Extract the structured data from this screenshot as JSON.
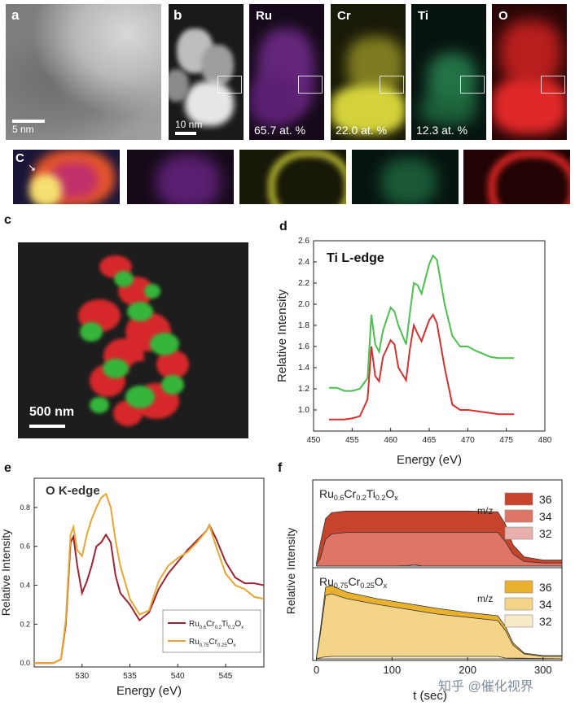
{
  "panel_a": {
    "label": "a",
    "scale": "5 nm"
  },
  "panel_b": {
    "label": "b",
    "scale": "10 nm",
    "maps": [
      {
        "element": "Ru",
        "percent": "65.7 at. %",
        "color": "#7b2b8f"
      },
      {
        "element": "Cr",
        "percent": "22.0 at. %",
        "color": "#c8c838"
      },
      {
        "element": "Ti",
        "percent": "12.3 at. %",
        "color": "#2a8a55"
      },
      {
        "element": "O",
        "percent": "",
        "color": "#d42424"
      }
    ]
  },
  "panel_c_strip": {
    "label": "C"
  },
  "panel_c": {
    "label": "c",
    "scale": "500 nm"
  },
  "chart_data": [
    {
      "panel": "d",
      "type": "line",
      "title": "Ti L-edge",
      "xlabel": "Energy (eV)",
      "ylabel": "Relative Intensity",
      "xlim": [
        450,
        480
      ],
      "ylim": [
        0.8,
        2.6
      ],
      "xticks": [
        "450",
        "455",
        "460",
        "465",
        "470",
        "475",
        "480"
      ],
      "yticks": [
        "1.0",
        "1.2",
        "1.4",
        "1.6",
        "1.8",
        "2.0",
        "2.2",
        "2.4",
        "2.6"
      ],
      "series": [
        {
          "name": "green",
          "color": "#4cc04c",
          "points": [
            [
              452,
              1.21
            ],
            [
              453,
              1.21
            ],
            [
              454,
              1.18
            ],
            [
              455,
              1.18
            ],
            [
              456,
              1.2
            ],
            [
              457,
              1.3
            ],
            [
              457.5,
              1.9
            ],
            [
              458,
              1.62
            ],
            [
              458.5,
              1.55
            ],
            [
              459,
              1.75
            ],
            [
              460,
              1.97
            ],
            [
              460.5,
              1.93
            ],
            [
              461,
              1.8
            ],
            [
              462,
              1.62
            ],
            [
              462.5,
              1.92
            ],
            [
              463,
              2.2
            ],
            [
              463.5,
              2.18
            ],
            [
              464,
              2.1
            ],
            [
              465,
              2.38
            ],
            [
              465.5,
              2.46
            ],
            [
              466,
              2.42
            ],
            [
              467,
              2.0
            ],
            [
              468,
              1.7
            ],
            [
              469,
              1.6
            ],
            [
              470,
              1.6
            ],
            [
              471,
              1.56
            ],
            [
              472,
              1.53
            ],
            [
              473,
              1.5
            ],
            [
              474,
              1.49
            ],
            [
              475,
              1.49
            ],
            [
              476,
              1.49
            ]
          ]
        },
        {
          "name": "red",
          "color": "#d63030",
          "points": [
            [
              452,
              0.91
            ],
            [
              453,
              0.91
            ],
            [
              454,
              0.91
            ],
            [
              455,
              0.92
            ],
            [
              456,
              0.94
            ],
            [
              457,
              1.1
            ],
            [
              457.5,
              1.6
            ],
            [
              458,
              1.32
            ],
            [
              458.5,
              1.27
            ],
            [
              459,
              1.5
            ],
            [
              460,
              1.66
            ],
            [
              460.5,
              1.62
            ],
            [
              461,
              1.4
            ],
            [
              462,
              1.28
            ],
            [
              462.5,
              1.58
            ],
            [
              463,
              1.8
            ],
            [
              463.5,
              1.72
            ],
            [
              464,
              1.65
            ],
            [
              465,
              1.85
            ],
            [
              465.5,
              1.9
            ],
            [
              466,
              1.82
            ],
            [
              467,
              1.4
            ],
            [
              468,
              1.05
            ],
            [
              469,
              1.0
            ],
            [
              470,
              1.0
            ],
            [
              471,
              0.99
            ],
            [
              472,
              0.98
            ],
            [
              473,
              0.97
            ],
            [
              474,
              0.96
            ],
            [
              475,
              0.96
            ],
            [
              476,
              0.96
            ]
          ]
        }
      ]
    },
    {
      "panel": "e",
      "type": "line",
      "title": "O K-edge",
      "xlabel": "Energy (eV)",
      "ylabel": "Relative Intensity",
      "xlim": [
        525,
        549
      ],
      "ylim": [
        -0.02,
        0.95
      ],
      "xticks": [
        "530",
        "535",
        "540",
        "545"
      ],
      "yticks": [
        "0.0",
        "0.2",
        "0.4",
        "0.6",
        "0.8"
      ],
      "legend": [
        {
          "base": "Ru",
          "sub1": "0.6",
          "mid1": "Cr",
          "sub2": "0.2",
          "mid2": "Ti",
          "sub3": "0.2",
          "mid3": "O",
          "sub4": "x",
          "color": "#9e2230"
        },
        {
          "base": "Ru",
          "sub1": "0.75",
          "mid1": "Cr",
          "sub2": "0.25",
          "mid2": "O",
          "sub3": "x",
          "color": "#e8a630"
        }
      ],
      "series": [
        {
          "name": "Ru0.6Cr0.2Ti0.2Ox",
          "color": "#9e2230",
          "points": [
            [
              525,
              0
            ],
            [
              527,
              0
            ],
            [
              527.8,
              0.02
            ],
            [
              528.3,
              0.2
            ],
            [
              528.8,
              0.62
            ],
            [
              529.1,
              0.65
            ],
            [
              529.5,
              0.5
            ],
            [
              530,
              0.36
            ],
            [
              530.5,
              0.42
            ],
            [
              531,
              0.5
            ],
            [
              531.5,
              0.6
            ],
            [
              532,
              0.62
            ],
            [
              532.5,
              0.66
            ],
            [
              533,
              0.62
            ],
            [
              533.5,
              0.45
            ],
            [
              534,
              0.36
            ],
            [
              535,
              0.3
            ],
            [
              536,
              0.22
            ],
            [
              537,
              0.26
            ],
            [
              538,
              0.38
            ],
            [
              539,
              0.46
            ],
            [
              540,
              0.52
            ],
            [
              541,
              0.58
            ],
            [
              542,
              0.63
            ],
            [
              543,
              0.68
            ],
            [
              543.3,
              0.71
            ],
            [
              544,
              0.64
            ],
            [
              545,
              0.52
            ],
            [
              546,
              0.44
            ],
            [
              547,
              0.41
            ],
            [
              548,
              0.41
            ],
            [
              549,
              0.4
            ]
          ]
        },
        {
          "name": "Ru0.75Cr0.25Ox",
          "color": "#e8a630",
          "points": [
            [
              525,
              0
            ],
            [
              527,
              0
            ],
            [
              527.8,
              0.02
            ],
            [
              528.3,
              0.22
            ],
            [
              528.8,
              0.66
            ],
            [
              529.1,
              0.7
            ],
            [
              529.5,
              0.58
            ],
            [
              530,
              0.55
            ],
            [
              530.5,
              0.66
            ],
            [
              531,
              0.74
            ],
            [
              531.5,
              0.8
            ],
            [
              532,
              0.85
            ],
            [
              532.5,
              0.87
            ],
            [
              533,
              0.8
            ],
            [
              533.5,
              0.63
            ],
            [
              534,
              0.5
            ],
            [
              535,
              0.33
            ],
            [
              536,
              0.25
            ],
            [
              537,
              0.27
            ],
            [
              538,
              0.42
            ],
            [
              539,
              0.5
            ],
            [
              540,
              0.54
            ],
            [
              541,
              0.57
            ],
            [
              542,
              0.62
            ],
            [
              543,
              0.68
            ],
            [
              543.3,
              0.71
            ],
            [
              544,
              0.6
            ],
            [
              545,
              0.46
            ],
            [
              546,
              0.4
            ],
            [
              547,
              0.38
            ],
            [
              548,
              0.34
            ],
            [
              549,
              0.33
            ]
          ]
        }
      ]
    },
    {
      "panel": "f",
      "type": "area",
      "xlabel": "t (sec)",
      "ylabel": "Relative Intensity",
      "xlim": [
        -5,
        325
      ],
      "xticks": [
        "0",
        "100",
        "200",
        "300"
      ],
      "subplots": [
        {
          "title": {
            "base": "Ru",
            "s1": "0.6",
            "m1": "Cr",
            "s2": "0.2",
            "m2": "Ti",
            "s3": "0.2",
            "m3": "O",
            "s4": "x"
          },
          "legend_title": "m/z",
          "legend": [
            {
              "label": "36",
              "color": "#c8432c"
            },
            {
              "label": "34",
              "color": "#de7566"
            },
            {
              "label": "32",
              "color": "#e8b0ab"
            }
          ],
          "ylim": [
            0,
            1
          ],
          "series": [
            {
              "name": "36",
              "color": "#c8432c",
              "points": [
                [
                  0,
                  0.05
                ],
                [
                  5,
                  0.3
                ],
                [
                  12,
                  0.62
                ],
                [
                  20,
                  0.7
                ],
                [
                  40,
                  0.72
                ],
                [
                  80,
                  0.72
                ],
                [
                  120,
                  0.72
                ],
                [
                  160,
                  0.72
                ],
                [
                  200,
                  0.72
                ],
                [
                  240,
                  0.71
                ],
                [
                  250,
                  0.55
                ],
                [
                  260,
                  0.28
                ],
                [
                  275,
                  0.12
                ],
                [
                  300,
                  0.08
                ],
                [
                  325,
                  0.08
                ]
              ]
            },
            {
              "name": "34",
              "color": "#de7566",
              "points": [
                [
                  0,
                  0.02
                ],
                [
                  5,
                  0.1
                ],
                [
                  12,
                  0.35
                ],
                [
                  20,
                  0.42
                ],
                [
                  40,
                  0.44
                ],
                [
                  80,
                  0.44
                ],
                [
                  120,
                  0.44
                ],
                [
                  160,
                  0.44
                ],
                [
                  200,
                  0.44
                ],
                [
                  240,
                  0.44
                ],
                [
                  250,
                  0.32
                ],
                [
                  260,
                  0.16
                ],
                [
                  275,
                  0.06
                ],
                [
                  300,
                  0.04
                ],
                [
                  325,
                  0.04
                ]
              ]
            },
            {
              "name": "32",
              "color": "#e8b0ab",
              "points": [
                [
                  0,
                  0
                ],
                [
                  100,
                  0
                ],
                [
                  120,
                  0.005
                ],
                [
                  130,
                  0.02
                ],
                [
                  140,
                  0
                ],
                [
                  325,
                  0
                ]
              ]
            }
          ]
        },
        {
          "title": {
            "base": "Ru",
            "s1": "0.75",
            "m1": "Cr",
            "s2": "0.25",
            "m2": "O",
            "s3": "x"
          },
          "legend_title": "m/z",
          "legend": [
            {
              "label": "36",
              "color": "#eab12e"
            },
            {
              "label": "34",
              "color": "#f3d488"
            },
            {
              "label": "32",
              "color": "#f7ebc8"
            }
          ],
          "ylim": [
            0,
            1
          ],
          "series": [
            {
              "name": "36",
              "color": "#eab12e",
              "points": [
                [
                  0,
                  0.03
                ],
                [
                  5,
                  0.35
                ],
                [
                  12,
                  0.88
                ],
                [
                  20,
                  0.9
                ],
                [
                  40,
                  0.82
                ],
                [
                  80,
                  0.74
                ],
                [
                  120,
                  0.68
                ],
                [
                  160,
                  0.62
                ],
                [
                  200,
                  0.57
                ],
                [
                  240,
                  0.53
                ],
                [
                  250,
                  0.4
                ],
                [
                  260,
                  0.2
                ],
                [
                  275,
                  0.07
                ],
                [
                  300,
                  0.04
                ],
                [
                  325,
                  0.04
                ]
              ]
            },
            {
              "name": "34",
              "color": "#f3d488",
              "points": [
                [
                  0,
                  0.02
                ],
                [
                  5,
                  0.3
                ],
                [
                  12,
                  0.78
                ],
                [
                  20,
                  0.8
                ],
                [
                  40,
                  0.74
                ],
                [
                  80,
                  0.67
                ],
                [
                  120,
                  0.61
                ],
                [
                  160,
                  0.55
                ],
                [
                  200,
                  0.51
                ],
                [
                  240,
                  0.47
                ],
                [
                  250,
                  0.35
                ],
                [
                  260,
                  0.17
                ],
                [
                  275,
                  0.06
                ],
                [
                  300,
                  0.03
                ],
                [
                  325,
                  0.03
                ]
              ]
            },
            {
              "name": "32",
              "color": "#f7ebc8",
              "points": [
                [
                  0,
                  0
                ],
                [
                  8,
                  0.02
                ],
                [
                  20,
                  0.03
                ],
                [
                  80,
                  0.03
                ],
                [
                  240,
                  0.03
                ],
                [
                  250,
                  0.01
                ],
                [
                  325,
                  0
                ]
              ]
            }
          ]
        }
      ]
    }
  ],
  "watermark": "知乎 @催化视界"
}
